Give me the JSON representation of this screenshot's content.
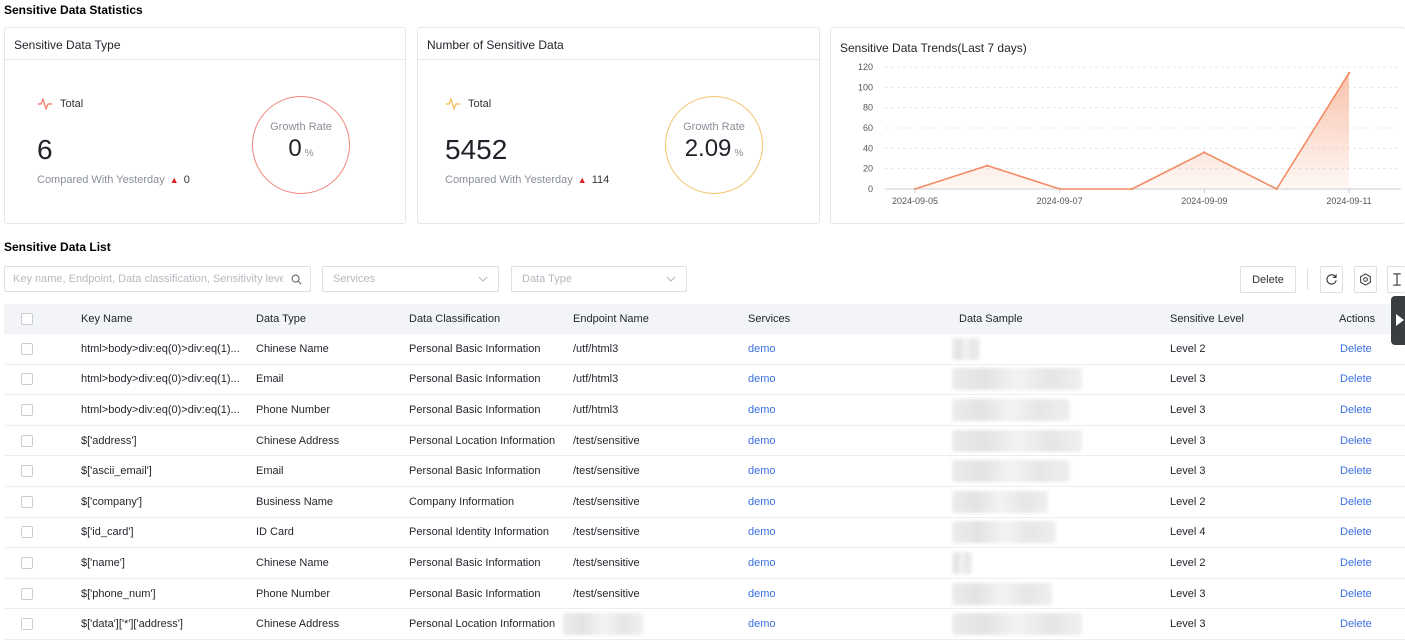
{
  "stats": {
    "title": "Sensitive Data Statistics",
    "type_card": {
      "title": "Sensitive Data Type",
      "total_label": "Total",
      "total": "6",
      "compare_label": "Compared With Yesterday",
      "compare_delta": "0",
      "growth_label": "Growth Rate",
      "growth_value": "0",
      "growth_unit": "%",
      "accent": "#f0857a"
    },
    "count_card": {
      "title": "Number of Sensitive Data",
      "total_label": "Total",
      "total": "5452",
      "compare_label": "Compared With Yesterday",
      "compare_delta": "114",
      "growth_label": "Growth Rate",
      "growth_value": "2.09",
      "growth_unit": "%",
      "accent": "#f3c26a"
    },
    "trend_card": {
      "title": "Sensitive Data Trends(Last 7 days)"
    }
  },
  "chart_data": {
    "type": "area",
    "title": "Sensitive Data Trends(Last 7 days)",
    "x": [
      "2024-09-05",
      "2024-09-06",
      "2024-09-07",
      "2024-09-08",
      "2024-09-09",
      "2024-09-10",
      "2024-09-11"
    ],
    "x_tick_labels": [
      "2024-09-05",
      "2024-09-07",
      "2024-09-09",
      "2024-09-11"
    ],
    "values": [
      0,
      23,
      0,
      0,
      36,
      0,
      114
    ],
    "ylim": [
      0,
      120
    ],
    "y_ticks": [
      0,
      20,
      40,
      60,
      80,
      100,
      120
    ],
    "grid": true,
    "line_color": "#f28c65",
    "fill_color": "#f8b89e"
  },
  "list": {
    "title": "Sensitive Data List",
    "search_placeholder": "Key name, Endpoint, Data classification, Sensitivity level",
    "services_placeholder": "Services",
    "datatype_placeholder": "Data Type",
    "delete_button": "Delete",
    "columns": [
      "Key Name",
      "Data Type",
      "Data Classification",
      "Endpoint Name",
      "Services",
      "Data Sample",
      "Sensitive Level",
      "Actions"
    ],
    "rows": [
      {
        "key": "html>body>div:eq(0)>div:eq(1)...",
        "type": "Chinese Name",
        "classification": "Personal Basic Information",
        "endpoint": "/utf/html3",
        "service": "demo",
        "level": "Level 2",
        "action": "Delete"
      },
      {
        "key": "html>body>div:eq(0)>div:eq(1)...",
        "type": "Email",
        "classification": "Personal Basic Information",
        "endpoint": "/utf/html3",
        "service": "demo",
        "level": "Level 3",
        "action": "Delete"
      },
      {
        "key": "html>body>div:eq(0)>div:eq(1)...",
        "type": "Phone Number",
        "classification": "Personal Basic Information",
        "endpoint": "/utf/html3",
        "service": "demo",
        "level": "Level 3",
        "action": "Delete"
      },
      {
        "key": "$['address']",
        "type": "Chinese Address",
        "classification": "Personal Location Information",
        "endpoint": "/test/sensitive",
        "service": "demo",
        "level": "Level 3",
        "action": "Delete"
      },
      {
        "key": "$['ascii_email']",
        "type": "Email",
        "classification": "Personal Basic Information",
        "endpoint": "/test/sensitive",
        "service": "demo",
        "level": "Level 3",
        "action": "Delete"
      },
      {
        "key": "$['company']",
        "type": "Business Name",
        "classification": "Company Information",
        "endpoint": "/test/sensitive",
        "service": "demo",
        "level": "Level 2",
        "action": "Delete"
      },
      {
        "key": "$['id_card']",
        "type": "ID Card",
        "classification": "Personal Identity Information",
        "endpoint": "/test/sensitive",
        "service": "demo",
        "level": "Level 4",
        "action": "Delete"
      },
      {
        "key": "$['name']",
        "type": "Chinese Name",
        "classification": "Personal Basic Information",
        "endpoint": "/test/sensitive",
        "service": "demo",
        "level": "Level 2",
        "action": "Delete"
      },
      {
        "key": "$['phone_num']",
        "type": "Phone Number",
        "classification": "Personal Basic Information",
        "endpoint": "/test/sensitive",
        "service": "demo",
        "level": "Level 3",
        "action": "Delete"
      },
      {
        "key": "$['data']['*']['address']",
        "type": "Chinese Address",
        "classification": "Personal Location Information",
        "endpoint": "",
        "service": "demo",
        "level": "Level 3",
        "action": "Delete"
      }
    ]
  }
}
